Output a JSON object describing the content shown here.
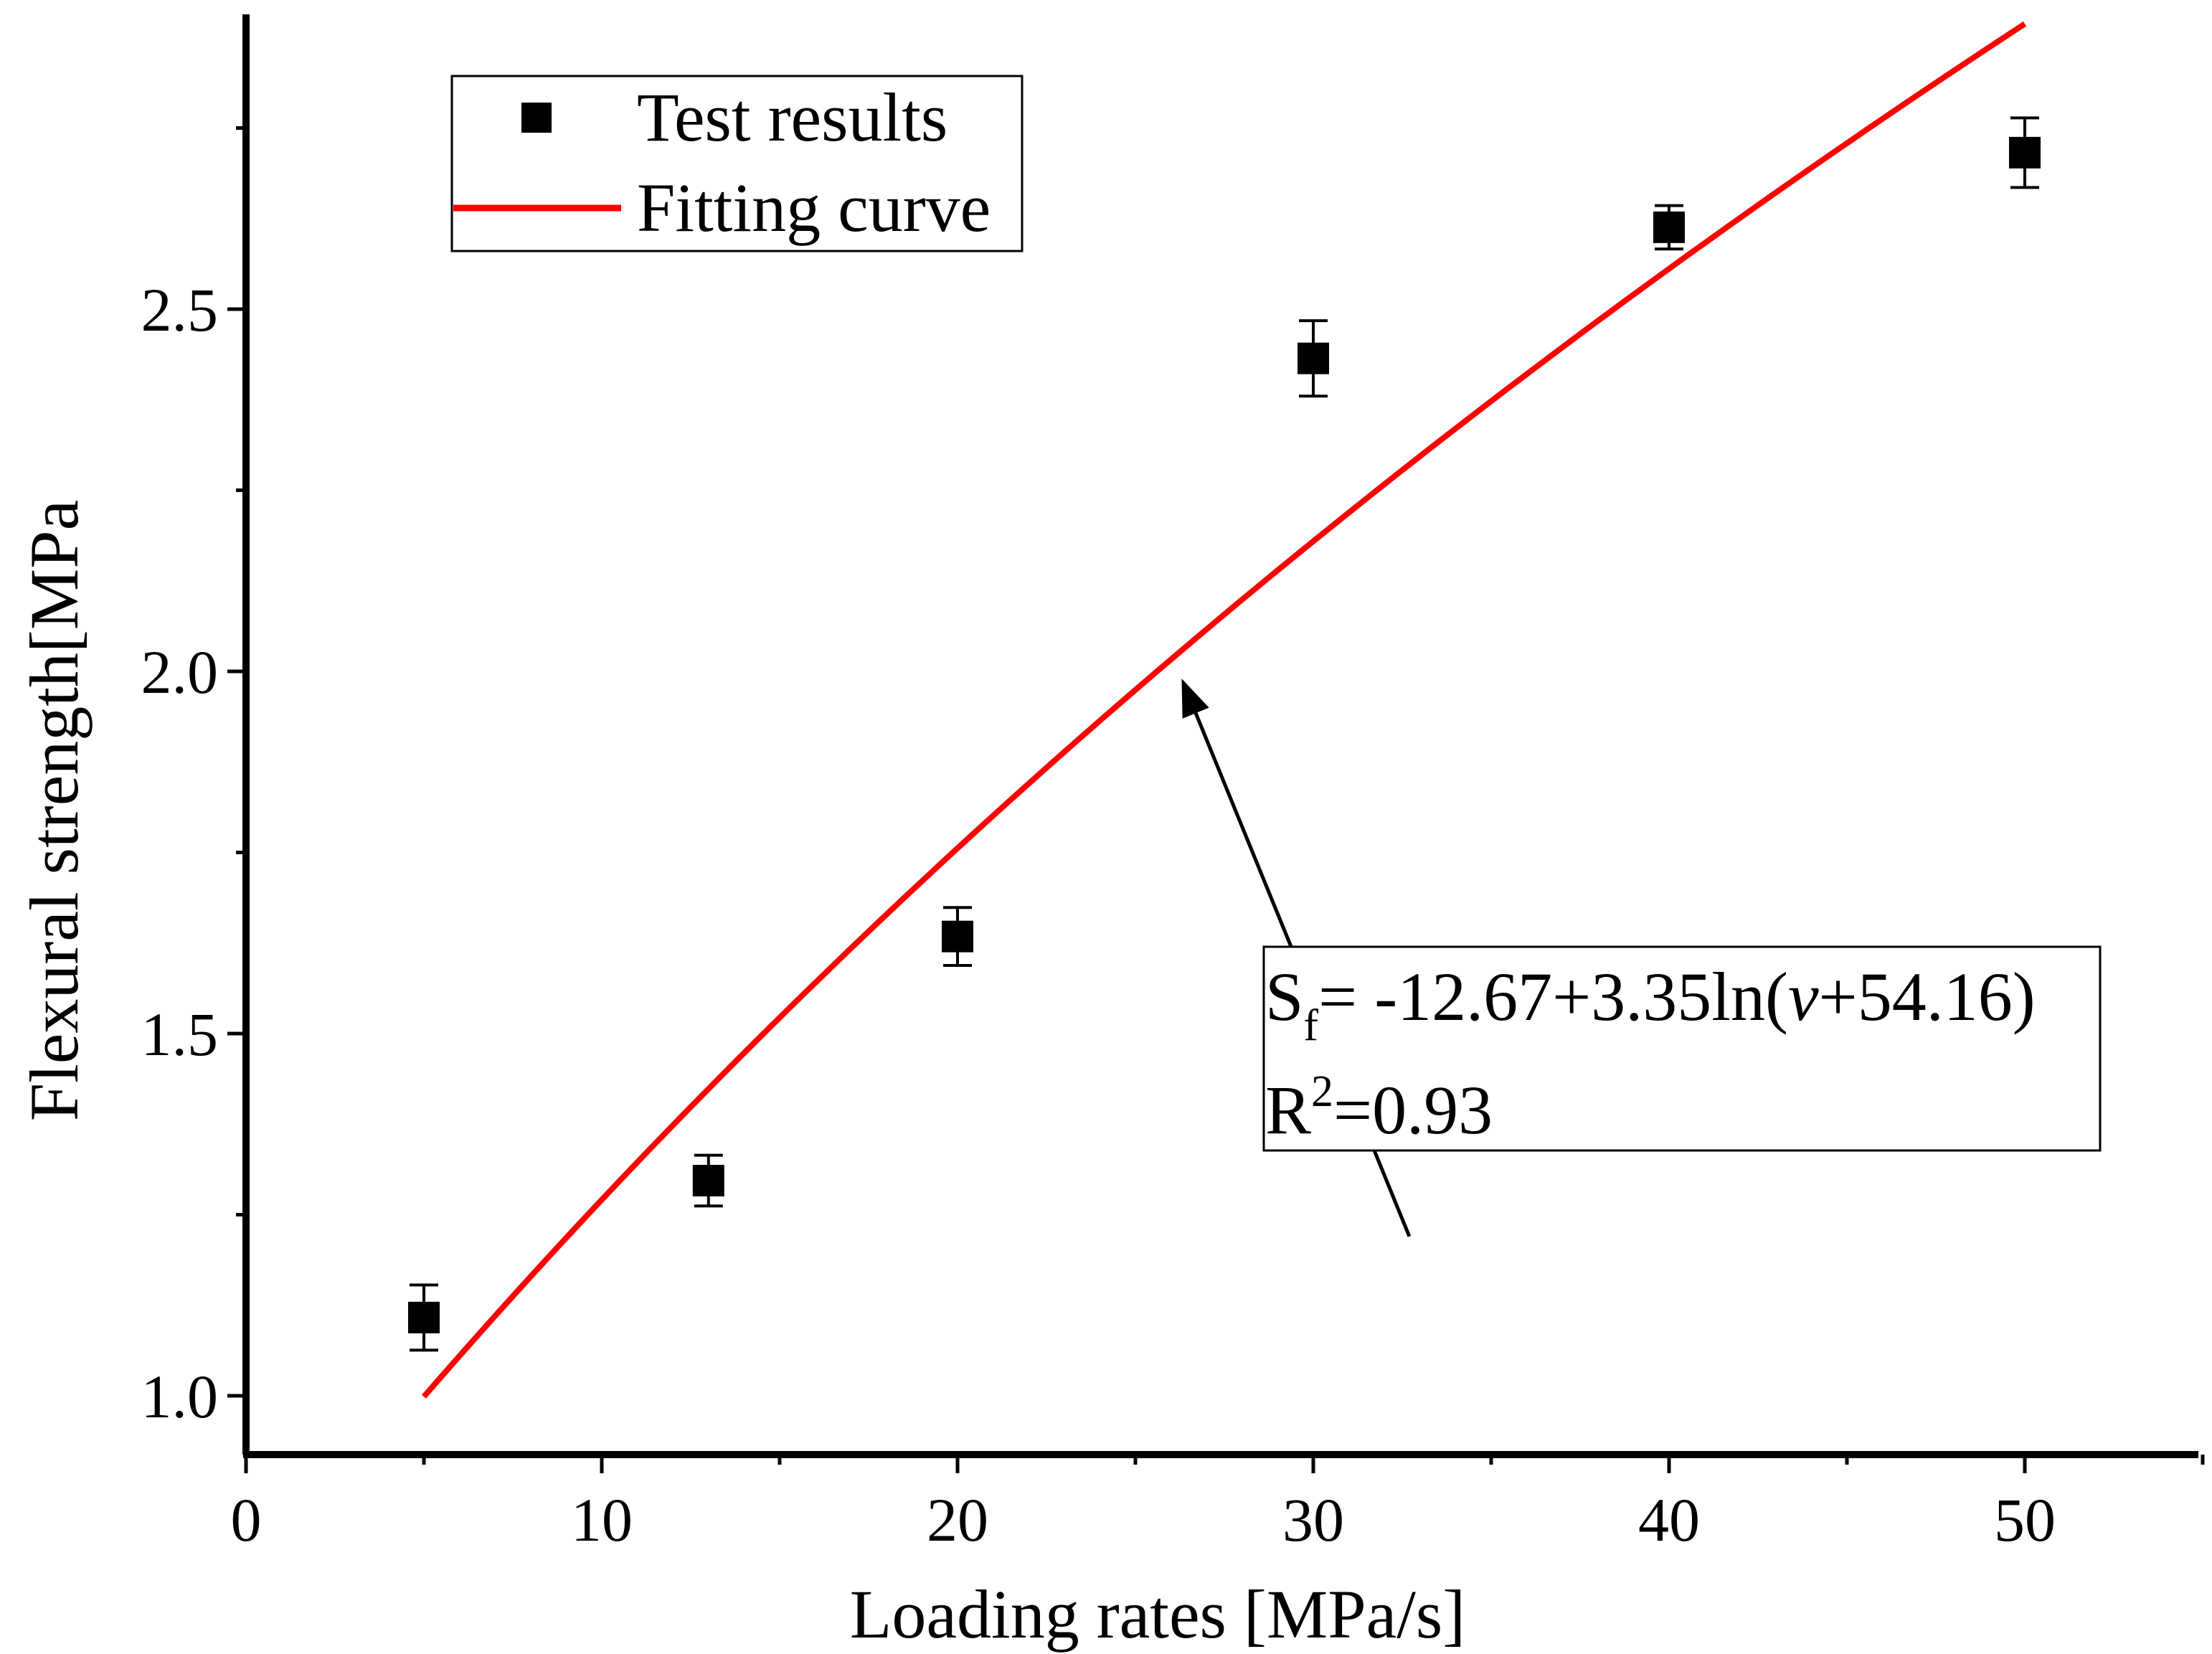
{
  "chart_data": {
    "type": "scatter",
    "title": "",
    "xlabel": "Loading rates [MPa/s]",
    "ylabel": "Flexural strength[MPa",
    "xlim": [
      0,
      55
    ],
    "ylim": [
      0.9,
      2.9
    ],
    "grid": false,
    "legend_position": "top-left",
    "x_ticks": [
      0,
      10,
      20,
      30,
      40,
      50
    ],
    "x_tick_labels": [
      "0",
      "10",
      "20",
      "30",
      "40",
      "50"
    ],
    "y_ticks": [
      1.0,
      1.5,
      2.0,
      2.5
    ],
    "y_tick_labels": [
      "1.0",
      "1.5",
      "2.0",
      "2.5"
    ],
    "series": [
      {
        "name": "Test results",
        "kind": "scatter",
        "marker": "square",
        "color": "#000000",
        "x": [
          5,
          13,
          20,
          30,
          40,
          50
        ],
        "y": [
          1.108,
          1.297,
          1.634,
          2.432,
          2.613,
          2.716
        ],
        "error": [
          0.045,
          0.035,
          0.04,
          0.052,
          0.03,
          0.048
        ]
      },
      {
        "name": "Fitting curve",
        "kind": "line",
        "color": "#ff0000",
        "equation": {
          "a": -12.67,
          "b": 3.35,
          "c": 54.16
        },
        "x_range": [
          5,
          50
        ]
      }
    ],
    "annotation": {
      "eq_S": "S",
      "eq_sub": "f",
      "eq_pre": "= -12.67+3.35ln(",
      "eq_var": "v",
      "eq_post": "+54.16)",
      "r_R": "R",
      "r_sup": "2",
      "r_post": "=0.93",
      "arrow_target": {
        "x": 26.3,
        "y": 1.99
      },
      "arrow_tail": {
        "x": 32.7,
        "y": 1.22
      }
    }
  }
}
